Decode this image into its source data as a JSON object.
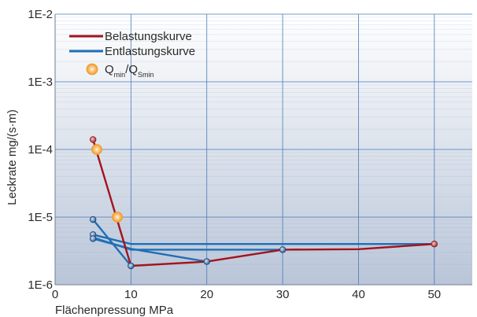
{
  "chart_data": {
    "type": "line",
    "xlabel": "Flächenpressung MPa",
    "ylabel": "Leckrate mg/(s·m)",
    "xlim": [
      0,
      55
    ],
    "ylim": [
      1e-06,
      0.01
    ],
    "yscale": "log",
    "x_ticks": [
      0,
      10,
      20,
      30,
      40,
      50
    ],
    "x_tick_labels": [
      "0",
      "10",
      "20",
      "30",
      "40",
      "50"
    ],
    "y_ticks": [
      1e-06,
      1e-05,
      0.0001,
      0.001,
      0.01
    ],
    "y_tick_labels": [
      "1E-6",
      "1E-5",
      "1E-4",
      "1E-3",
      "1E-2"
    ],
    "grid": true,
    "legend_position": "top-left",
    "colors": {
      "loading": "#a3141c",
      "unloading": "#1f6fb5",
      "qmin": "#f5a742"
    },
    "legend": {
      "loading": "Belastungskurve",
      "unloading": "Entlastungskurve",
      "qmin_main": "Q",
      "qmin_sub1": "min",
      "qmin_sep": "/Q",
      "qmin_sub2": "Smin"
    },
    "loading_curve": {
      "x": [
        5,
        10,
        20,
        30,
        40,
        50
      ],
      "y": [
        0.00014,
        1.9e-06,
        2.2e-06,
        3.3e-06,
        3.35e-06,
        4e-06
      ]
    },
    "unloading_curves": [
      {
        "x": [
          10,
          5
        ],
        "y": [
          1.9e-06,
          9.2e-06
        ]
      },
      {
        "x": [
          50,
          10,
          5
        ],
        "y": [
          4e-06,
          4e-06,
          5.5e-06
        ]
      },
      {
        "x": [
          30,
          10,
          5
        ],
        "y": [
          3.3e-06,
          3.3e-06,
          5e-06
        ]
      },
      {
        "x": [
          20,
          10,
          5
        ],
        "y": [
          2.2e-06,
          3.4e-06,
          4.8e-06
        ]
      }
    ],
    "loading_markers": {
      "x": [
        5,
        50
      ],
      "y": [
        0.00014,
        4e-06
      ]
    },
    "unloading_markers": {
      "x": [
        5,
        5,
        5,
        10,
        20,
        30
      ],
      "y": [
        9.2e-06,
        5.5e-06,
        4.8e-06,
        1.9e-06,
        2.2e-06,
        3.3e-06
      ]
    },
    "qmin_points": {
      "x": [
        5.5,
        8.2
      ],
      "y": [
        0.0001,
        1e-05
      ]
    }
  }
}
